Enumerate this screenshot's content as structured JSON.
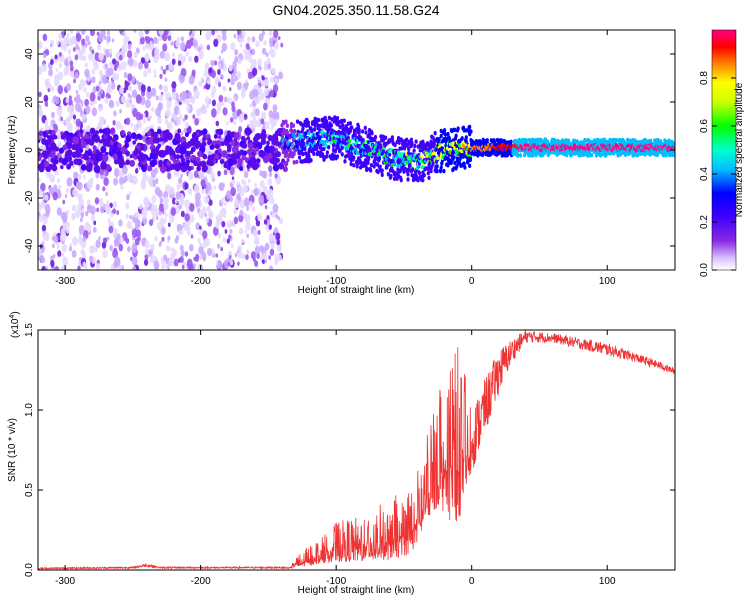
{
  "title": "GN04.2025.350.11.58.G24",
  "chart_data": [
    {
      "type": "heatmap",
      "title": "GN04.2025.350.11.58.G24",
      "xlabel": "Height of straight line (km)",
      "ylabel": "Frequency (Hz)",
      "xlim": [
        -320,
        150
      ],
      "ylim": [
        -50,
        50
      ],
      "xticks": [
        -300,
        -200,
        -100,
        0,
        100
      ],
      "yticks": [
        -40,
        -20,
        0,
        20,
        40
      ],
      "colorbar": {
        "label": "Normalized spectral amplitude",
        "range": [
          0,
          1
        ],
        "ticks": [
          0.0,
          0.2,
          0.4,
          0.6,
          0.8
        ],
        "colors": [
          "#ffffff",
          "#c9a8ff",
          "#8a2be2",
          "#3f00ff",
          "#0000ff",
          "#00bfff",
          "#00ffcc",
          "#00ff00",
          "#ffff00",
          "#ff8000",
          "#ff0000",
          "#ff0080"
        ]
      },
      "features": [
        {
          "name": "noise",
          "x_range": [
            -320,
            -140
          ],
          "f_range": [
            -50,
            50
          ],
          "amplitude": 0.1
        },
        {
          "name": "signal-band",
          "x_range": [
            -140,
            150
          ],
          "center_f_at": [
            [
              -140,
              3
            ],
            [
              -100,
              5
            ],
            [
              -60,
              -3
            ],
            [
              -40,
              -5
            ],
            [
              -20,
              0
            ],
            [
              0,
              1
            ],
            [
              150,
              1
            ]
          ],
          "amplitude_at": [
            [
              -140,
              0.3
            ],
            [
              -100,
              0.45
            ],
            [
              -60,
              0.5
            ],
            [
              -30,
              0.6
            ],
            [
              0,
              0.8
            ],
            [
              40,
              0.95
            ],
            [
              150,
              0.95
            ]
          ]
        }
      ]
    },
    {
      "type": "line",
      "xlabel": "Height of straight line (km)",
      "ylabel": "SNR (10 * v/v)",
      "y_scale_label": "(x10",
      "y_scale_exp": "4",
      "y_scale_close": ")",
      "xlim": [
        -320,
        150
      ],
      "ylim": [
        0,
        1.5
      ],
      "xticks": [
        -300,
        -200,
        -100,
        0,
        100
      ],
      "yticks": [
        0.0,
        0.5,
        1.0,
        1.5
      ],
      "ytick_labels": [
        "0.0",
        "0.5",
        "1.0",
        "1.5"
      ],
      "series": [
        {
          "name": "SNR",
          "color": "#ee3333",
          "envelope_x": [
            -320,
            -250,
            -240,
            -230,
            -135,
            -125,
            -110,
            -100,
            -80,
            -60,
            -45,
            -35,
            -25,
            -15,
            -10,
            -5,
            0,
            10,
            20,
            30,
            40,
            60,
            80,
            100,
            120,
            140,
            150
          ],
          "envelope_low": [
            0.005,
            0.01,
            0.02,
            0.01,
            0.01,
            0.02,
            0.04,
            0.05,
            0.05,
            0.06,
            0.1,
            0.25,
            0.4,
            0.3,
            0.3,
            0.45,
            0.6,
            0.85,
            1.1,
            1.3,
            1.42,
            1.42,
            1.38,
            1.34,
            1.3,
            1.25,
            1.22
          ],
          "envelope_high": [
            0.015,
            0.02,
            0.04,
            0.02,
            0.02,
            0.12,
            0.22,
            0.3,
            0.35,
            0.45,
            0.52,
            0.75,
            1.2,
            1.45,
            1.4,
            1.25,
            1.0,
            1.2,
            1.38,
            1.45,
            1.5,
            1.48,
            1.45,
            1.42,
            1.36,
            1.3,
            1.26
          ]
        }
      ]
    }
  ]
}
